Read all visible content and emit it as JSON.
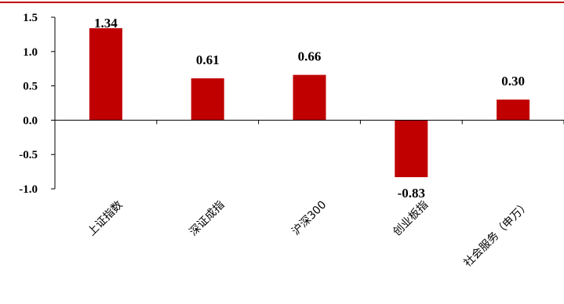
{
  "chart_data": {
    "type": "bar",
    "categories": [
      "上证指数",
      "深证成指",
      "沪深300",
      "创业板指",
      "社会服务（申万）"
    ],
    "values": [
      1.34,
      0.61,
      0.66,
      -0.83,
      0.3
    ],
    "value_labels": [
      "1.34",
      "0.61",
      "0.66",
      "-0.83",
      "0.30"
    ],
    "yticks": [
      1.5,
      1.0,
      0.5,
      0.0,
      -0.5,
      -1.0
    ],
    "ytick_labels": [
      "1.5",
      "1.0",
      "0.5",
      "0.0",
      "-0.5",
      "-1.0"
    ],
    "ylim": [
      -1.0,
      1.5
    ],
    "title": "",
    "xlabel": "",
    "ylabel": "",
    "grid": false,
    "colors": {
      "bar": "#c00000",
      "top_rule": "#c00000",
      "axis": "#000000"
    }
  }
}
